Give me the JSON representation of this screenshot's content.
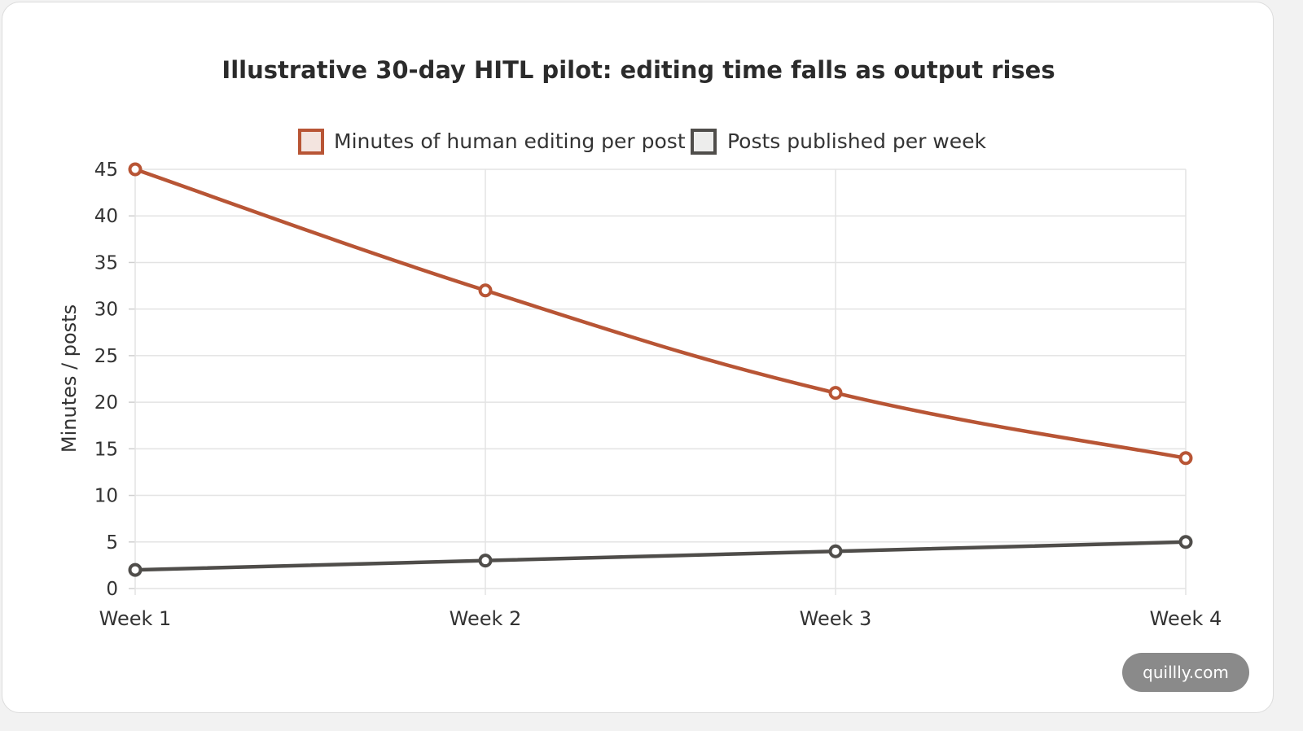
{
  "chart_data": {
    "type": "line",
    "title": "Illustrative 30-day HITL pilot: editing time falls as output rises",
    "ylabel": "Minutes / posts",
    "xlabel": "",
    "categories": [
      "Week 1",
      "Week 2",
      "Week 3",
      "Week 4"
    ],
    "ylim": [
      0,
      45
    ],
    "yticks": [
      0,
      5,
      10,
      15,
      20,
      25,
      30,
      35,
      40,
      45
    ],
    "grid": true,
    "legend_position": "top",
    "series": [
      {
        "name": "Minutes of human editing per post",
        "values": [
          45,
          32,
          21,
          14
        ],
        "color": "#b85535",
        "fill": "#f3e4df"
      },
      {
        "name": "Posts published per week",
        "values": [
          2,
          3,
          4,
          5
        ],
        "color": "#4f4d4a",
        "fill": "#ededec"
      }
    ]
  },
  "watermark": "quillly.com"
}
